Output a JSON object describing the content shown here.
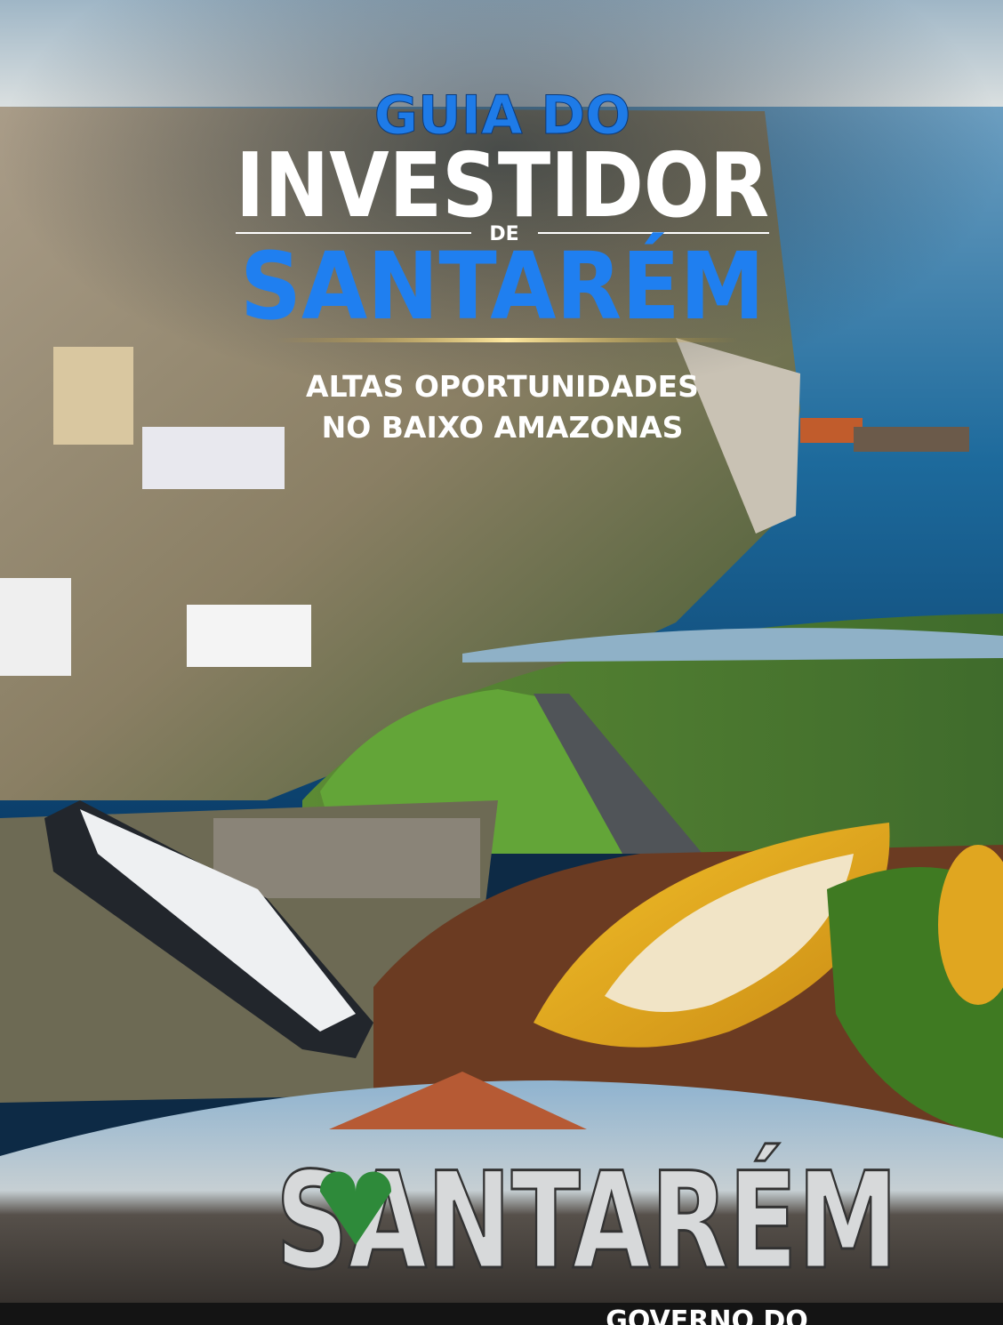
{
  "cover": {
    "title_line1": "GUIA DO",
    "title_line2": "INVESTIDOR",
    "title_connector": "DE",
    "title_line3": "SANTARÉM",
    "subtitle_line1": "ALTAS OPORTUNIDADES",
    "subtitle_line2": "NO BAIXO AMAZONAS",
    "sign_text": "SANTARÉM",
    "footer_text": "GOVERNO DO"
  }
}
